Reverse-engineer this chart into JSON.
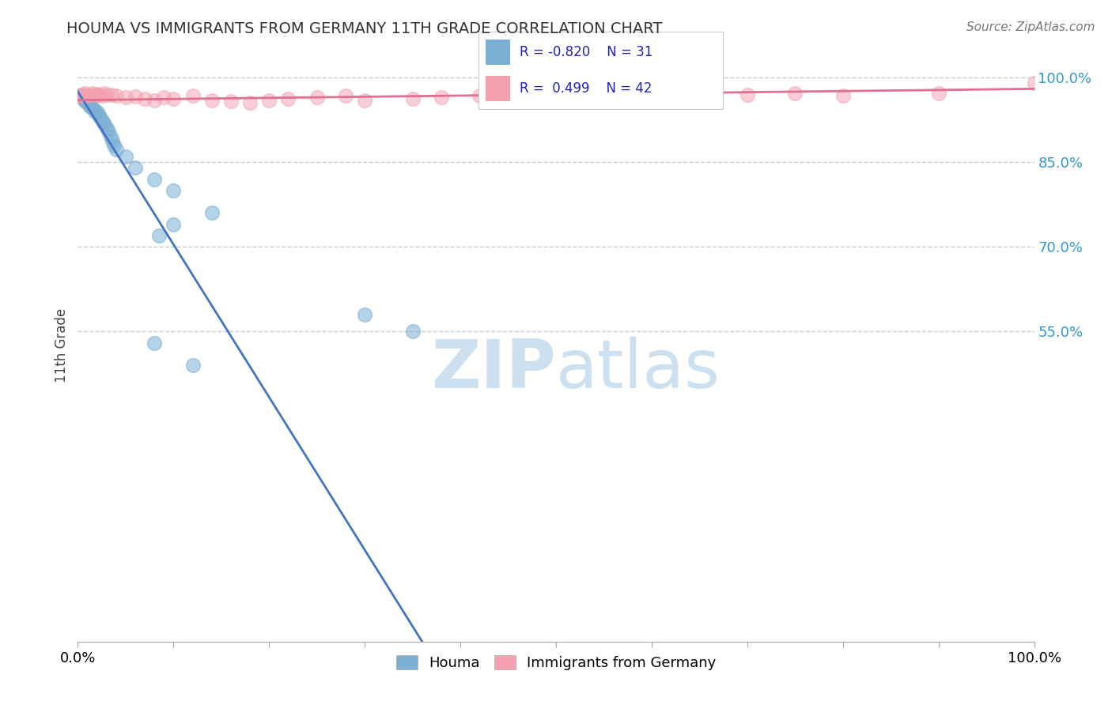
{
  "title": "HOUMA VS IMMIGRANTS FROM GERMANY 11TH GRADE CORRELATION CHART",
  "source": "Source: ZipAtlas.com",
  "ylabel": "11th Grade",
  "xlim": [
    0.0,
    1.0
  ],
  "ylim": [
    0.0,
    1.05
  ],
  "ytick_positions": [
    0.55,
    0.7,
    0.85,
    1.0
  ],
  "ytick_labels": [
    "55.0%",
    "70.0%",
    "85.0%",
    "100.0%"
  ],
  "xtick_positions": [
    0.0,
    0.1,
    0.2,
    0.3,
    0.4,
    0.5,
    0.6,
    0.7,
    0.8,
    0.9,
    1.0
  ],
  "grid_color": "#cccccc",
  "background_color": "#ffffff",
  "houma_color": "#7bafd4",
  "germany_color": "#f4a0b0",
  "houma_R": -0.82,
  "houma_N": 31,
  "germany_R": 0.499,
  "germany_N": 42,
  "houma_line_color": "#4472c4",
  "germany_line_color": "#e07090",
  "legend_R_color": "#2222bb",
  "watermark_color": "#cce0f0",
  "houma_points_x": [
    0.003,
    0.005,
    0.007,
    0.008,
    0.01,
    0.012,
    0.014,
    0.016,
    0.018,
    0.02,
    0.022,
    0.024,
    0.026,
    0.028,
    0.03,
    0.032,
    0.034,
    0.036,
    0.038,
    0.04,
    0.05,
    0.06,
    0.08,
    0.1,
    0.14,
    0.1,
    0.085,
    0.3,
    0.35,
    0.08,
    0.12
  ],
  "houma_points_y": [
    0.97,
    0.965,
    0.96,
    0.958,
    0.955,
    0.95,
    0.948,
    0.945,
    0.94,
    0.938,
    0.933,
    0.928,
    0.922,
    0.917,
    0.91,
    0.905,
    0.895,
    0.888,
    0.88,
    0.872,
    0.86,
    0.84,
    0.82,
    0.8,
    0.76,
    0.74,
    0.72,
    0.58,
    0.55,
    0.53,
    0.49
  ],
  "germany_points_x": [
    0.003,
    0.005,
    0.007,
    0.01,
    0.012,
    0.015,
    0.018,
    0.02,
    0.022,
    0.025,
    0.028,
    0.03,
    0.035,
    0.04,
    0.05,
    0.06,
    0.07,
    0.08,
    0.09,
    0.1,
    0.12,
    0.14,
    0.16,
    0.18,
    0.2,
    0.22,
    0.25,
    0.28,
    0.3,
    0.35,
    0.38,
    0.42,
    0.45,
    0.5,
    0.55,
    0.6,
    0.65,
    0.7,
    0.75,
    0.8,
    0.9,
    1.0
  ],
  "germany_points_y": [
    0.968,
    0.97,
    0.972,
    0.968,
    0.97,
    0.972,
    0.969,
    0.971,
    0.97,
    0.968,
    0.972,
    0.969,
    0.97,
    0.968,
    0.965,
    0.967,
    0.963,
    0.96,
    0.965,
    0.962,
    0.968,
    0.96,
    0.958,
    0.955,
    0.96,
    0.963,
    0.965,
    0.968,
    0.96,
    0.962,
    0.965,
    0.968,
    0.965,
    0.97,
    0.965,
    0.968,
    0.968,
    0.97,
    0.972,
    0.968,
    0.972,
    0.99
  ],
  "houma_line_x": [
    0.0,
    0.36
  ],
  "houma_line_y": [
    0.975,
    0.0
  ],
  "germany_line_x": [
    0.0,
    1.0
  ],
  "germany_line_y": [
    0.96,
    0.98
  ]
}
